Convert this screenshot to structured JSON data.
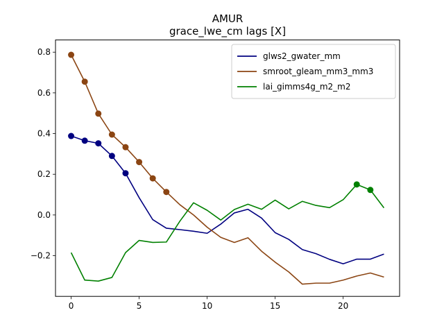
{
  "chart_data": {
    "type": "line",
    "title": "AMUR",
    "subtitle": "grace_lwe_cm lags [X]",
    "xlabel": "",
    "ylabel": "",
    "xlim": [
      -1.15,
      24.15
    ],
    "ylim": [
      -0.4,
      0.86
    ],
    "x_ticks": [
      0,
      5,
      10,
      15,
      20
    ],
    "y_ticks": [
      -0.2,
      0.0,
      0.2,
      0.4,
      0.6,
      0.8
    ],
    "y_tick_labels": [
      "−0.2",
      "0.0",
      "0.2",
      "0.4",
      "0.6",
      "0.8"
    ],
    "grid": false,
    "legend_position": "upper-right",
    "x": [
      0,
      1,
      2,
      3,
      4,
      5,
      6,
      7,
      8,
      9,
      10,
      11,
      12,
      13,
      14,
      15,
      16,
      17,
      18,
      19,
      20,
      21,
      22,
      23
    ],
    "series": [
      {
        "name": "glws2_gwater_mm",
        "color": "#000080",
        "values": [
          0.388,
          0.365,
          0.352,
          0.29,
          0.205,
          0.085,
          -0.023,
          -0.065,
          -0.072,
          -0.08,
          -0.09,
          -0.045,
          0.01,
          0.028,
          -0.015,
          -0.087,
          -0.12,
          -0.17,
          -0.19,
          -0.218,
          -0.24,
          -0.217,
          -0.217,
          -0.192
        ],
        "highlighted_x": [
          0,
          1,
          2,
          3,
          4
        ]
      },
      {
        "name": "smroot_gleam_mm3_mm3",
        "color": "#8B4513",
        "values": [
          0.787,
          0.655,
          0.498,
          0.395,
          0.333,
          0.26,
          0.18,
          0.113,
          0.05,
          0.0,
          -0.06,
          -0.11,
          -0.135,
          -0.112,
          -0.178,
          -0.232,
          -0.28,
          -0.34,
          -0.335,
          -0.335,
          -0.32,
          -0.3,
          -0.285,
          -0.305
        ],
        "highlighted_x": [
          0,
          1,
          2,
          3,
          4,
          5,
          6,
          7
        ]
      },
      {
        "name": "lai_gimms4g_m2_m2",
        "color": "#008000",
        "values": [
          -0.185,
          -0.32,
          -0.325,
          -0.307,
          -0.185,
          -0.125,
          -0.135,
          -0.133,
          -0.03,
          0.06,
          0.023,
          -0.025,
          0.027,
          0.053,
          0.028,
          0.073,
          0.03,
          0.067,
          0.047,
          0.036,
          0.075,
          0.15,
          0.123,
          0.035
        ],
        "highlighted_x": [
          21,
          22
        ]
      }
    ]
  }
}
